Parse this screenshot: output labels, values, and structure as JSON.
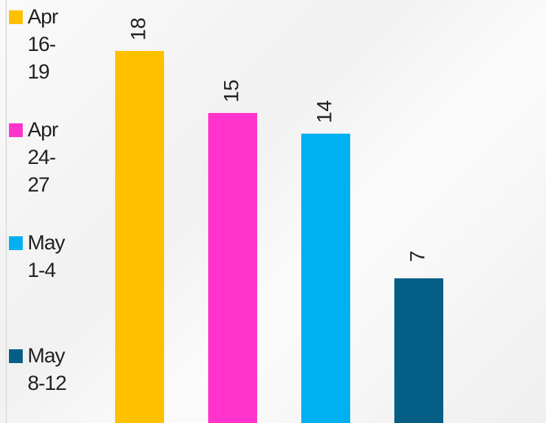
{
  "chart_data": {
    "type": "bar",
    "categories": [
      "Apr 16-19",
      "Apr 24-27",
      "May 1-4",
      "May 8-12"
    ],
    "values": [
      18,
      15,
      14,
      7
    ],
    "colors": [
      "#ffc000",
      "#ff33cc",
      "#00b0f0",
      "#055e85"
    ],
    "ylim": [
      0,
      20
    ]
  }
}
